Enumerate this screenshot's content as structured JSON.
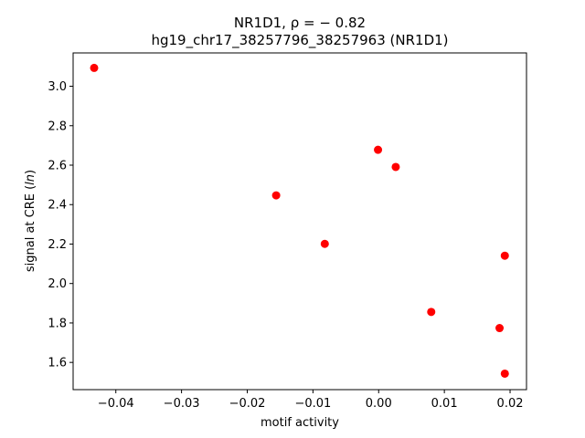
{
  "chart_data": {
    "type": "scatter",
    "title_line1": "NR1D1, ρ = − 0.82",
    "title_line2": "hg19_chr17_38257796_38257963 (NR1D1)",
    "xlabel": "motif activity",
    "ylabel": "signal at CRE (ln)",
    "xlim": [
      -0.0465,
      0.0225
    ],
    "ylim": [
      1.462,
      3.169
    ],
    "xticks": [
      -0.04,
      -0.03,
      -0.02,
      -0.01,
      0.0,
      0.01,
      0.02
    ],
    "xtick_labels": [
      "−0.04",
      "−0.03",
      "−0.02",
      "−0.01",
      "0.00",
      "0.01",
      "0.02"
    ],
    "yticks": [
      1.6,
      1.8,
      2.0,
      2.2,
      2.4,
      2.6,
      2.8,
      3.0
    ],
    "ytick_labels": [
      "1.6",
      "1.8",
      "2.0",
      "2.2",
      "2.4",
      "2.6",
      "2.8",
      "3.0"
    ],
    "grid": false,
    "marker_color": "#ff0000",
    "points": [
      {
        "x": -0.0433,
        "y": 3.093
      },
      {
        "x": -0.0156,
        "y": 2.447
      },
      {
        "x": -0.0082,
        "y": 2.201
      },
      {
        "x": -0.0001,
        "y": 2.678
      },
      {
        "x": 0.0026,
        "y": 2.591
      },
      {
        "x": 0.008,
        "y": 1.856
      },
      {
        "x": 0.0184,
        "y": 1.774
      },
      {
        "x": 0.0192,
        "y": 2.141
      },
      {
        "x": 0.0192,
        "y": 1.543
      }
    ]
  }
}
